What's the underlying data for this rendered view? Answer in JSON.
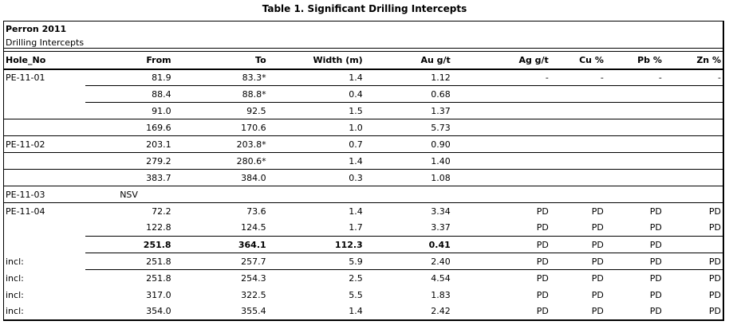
{
  "page": {
    "title": "Table 1. Significant Drilling Intercepts"
  },
  "table": {
    "header_left": "Perron 2011",
    "header_sub": "Drilling Intercepts",
    "columns": [
      {
        "key": "hole",
        "label": "Hole_No"
      },
      {
        "key": "from",
        "label": "From"
      },
      {
        "key": "to",
        "label": "To"
      },
      {
        "key": "width",
        "label": "Width (m)"
      },
      {
        "key": "au",
        "label": "Au g/t"
      },
      {
        "key": "ag",
        "label": "Ag g/t"
      },
      {
        "key": "cu",
        "label": "Cu %"
      },
      {
        "key": "pb",
        "label": "Pb %"
      },
      {
        "key": "zn",
        "label": "Zn %"
      }
    ],
    "rows": [
      {
        "hole": "PE-11-01",
        "from": "81.9",
        "to": "83.3*",
        "width": "1.4",
        "au": "1.12",
        "ag": "-",
        "cu": "-",
        "pb": "-",
        "zn": "-",
        "rule": "partial"
      },
      {
        "hole": "",
        "from": "88.4",
        "to": "88.8*",
        "width": "0.4",
        "au": "0.68",
        "ag": "",
        "cu": "",
        "pb": "",
        "zn": "",
        "rule": "partial"
      },
      {
        "hole": "",
        "from": "91.0",
        "to": "92.5",
        "width": "1.5",
        "au": "1.37",
        "ag": "",
        "cu": "",
        "pb": "",
        "zn": "",
        "rule": "full"
      },
      {
        "hole": "",
        "from": "169.6",
        "to": "170.6",
        "width": "1.0",
        "au": "5.73",
        "ag": "",
        "cu": "",
        "pb": "",
        "zn": "",
        "rule": "full"
      },
      {
        "hole": "PE-11-02",
        "from": "203.1",
        "to": "203.8*",
        "width": "0.7",
        "au": "0.90",
        "ag": "",
        "cu": "",
        "pb": "",
        "zn": "",
        "rule": "full"
      },
      {
        "hole": "",
        "from": "279.2",
        "to": "280.6*",
        "width": "1.4",
        "au": "1.40",
        "ag": "",
        "cu": "",
        "pb": "",
        "zn": "",
        "rule": "full"
      },
      {
        "hole": "",
        "from": "383.7",
        "to": "384.0",
        "width": "0.3",
        "au": "1.08",
        "ag": "",
        "cu": "",
        "pb": "",
        "zn": "",
        "rule": "full"
      },
      {
        "hole": "PE-11-03",
        "from": "NSV",
        "to": "",
        "width": "",
        "au": "",
        "ag": "",
        "cu": "",
        "pb": "",
        "zn": "",
        "rule": "full",
        "from_center": true
      },
      {
        "hole": "PE-11-04",
        "from": "72.2",
        "to": "73.6",
        "width": "1.4",
        "au": "3.34",
        "ag": "PD",
        "cu": "PD",
        "pb": "PD",
        "zn": "PD",
        "rule": "none"
      },
      {
        "hole": "",
        "from": "122.8",
        "to": "124.5",
        "width": "1.7",
        "au": "3.37",
        "ag": "PD",
        "cu": "PD",
        "pb": "PD",
        "zn": "PD",
        "rule": "partial"
      },
      {
        "hole": "",
        "from": "251.8",
        "to": "364.1",
        "width": "112.3",
        "au": "0.41",
        "ag": "PD",
        "cu": "PD",
        "pb": "PD",
        "zn": "",
        "rule": "partial",
        "bold": true
      },
      {
        "hole": "incl:",
        "from": "251.8",
        "to": "257.7",
        "width": "5.9",
        "au": "2.40",
        "ag": "PD",
        "cu": "PD",
        "pb": "PD",
        "zn": "PD",
        "rule": "partial"
      },
      {
        "hole": "incl:",
        "from": "251.8",
        "to": "254.3",
        "width": "2.5",
        "au": "4.54",
        "ag": "PD",
        "cu": "PD",
        "pb": "PD",
        "zn": "PD",
        "rule": "none"
      },
      {
        "hole": "incl:",
        "from": "317.0",
        "to": "322.5",
        "width": "5.5",
        "au": "1.83",
        "ag": "PD",
        "cu": "PD",
        "pb": "PD",
        "zn": "PD",
        "rule": "none"
      },
      {
        "hole": "incl:",
        "from": "354.0",
        "to": "355.4",
        "width": "1.4",
        "au": "2.42",
        "ag": "PD",
        "cu": "PD",
        "pb": "PD",
        "zn": "PD",
        "rule": "none"
      }
    ]
  },
  "colors": {
    "text": "#000000",
    "border": "#000000",
    "background": "#ffffff"
  }
}
